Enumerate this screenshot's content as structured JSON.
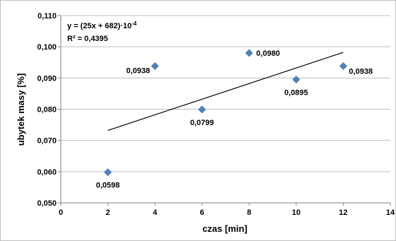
{
  "chart_data": {
    "type": "scatter",
    "xlabel": "czas [min]",
    "ylabel": "ubytek masy [%]",
    "xlim": [
      0,
      14
    ],
    "ylim": [
      0.05,
      0.11
    ],
    "x_ticks": [
      0,
      2,
      4,
      6,
      8,
      10,
      12,
      14
    ],
    "y_ticks": [
      0.05,
      0.06,
      0.07,
      0.08,
      0.09,
      0.1,
      0.11
    ],
    "x_tick_labels": [
      "0",
      "2",
      "4",
      "6",
      "8",
      "10",
      "12",
      "14"
    ],
    "y_tick_labels": [
      "0,050",
      "0,060",
      "0,070",
      "0,080",
      "0,090",
      "0,100",
      "0,110"
    ],
    "grid": "horizontal",
    "series": [
      {
        "points": [
          {
            "x": 2,
            "y": 0.0598,
            "label": "0,0598"
          },
          {
            "x": 4,
            "y": 0.0938,
            "label": "0,0938"
          },
          {
            "x": 6,
            "y": 0.0799,
            "label": "0,0799"
          },
          {
            "x": 8,
            "y": 0.098,
            "label": "0,0980"
          },
          {
            "x": 10,
            "y": 0.0895,
            "label": "0,0895"
          },
          {
            "x": 12,
            "y": 0.0938,
            "label": "0,0938"
          }
        ],
        "color": "#4F81BD"
      }
    ],
    "trendline": {
      "x_range": [
        2,
        12
      ],
      "y_range": [
        0.0732,
        0.0982
      ],
      "equation": "y = (25x + 682)·10",
      "equation_exponent": "-4",
      "r_squared": "R² = 0,4395"
    }
  }
}
